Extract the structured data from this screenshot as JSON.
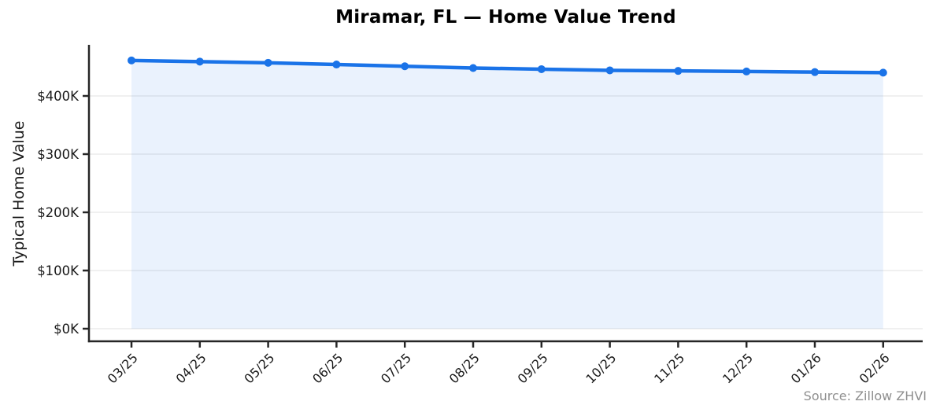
{
  "chart_data": {
    "type": "area",
    "title": "Miramar, FL — Home Value Trend",
    "ylabel": "Typical Home Value",
    "xlabel": "",
    "source": "Source: Zillow ZHVI",
    "legend": "none",
    "grid": "horizontal",
    "x": [
      "03/25",
      "04/25",
      "05/25",
      "06/25",
      "07/25",
      "08/25",
      "09/25",
      "10/25",
      "11/25",
      "12/25",
      "01/26",
      "02/26"
    ],
    "series": [
      {
        "name": "Typical Home Value",
        "values": [
          461000,
          459000,
          457000,
          454000,
          451000,
          448000,
          446000,
          444000,
          443000,
          442000,
          441000,
          440000
        ]
      }
    ],
    "y_ticks": [
      {
        "value": 0,
        "label": "$0K"
      },
      {
        "value": 100000,
        "label": "$100K"
      },
      {
        "value": 200000,
        "label": "$200K"
      },
      {
        "value": 300000,
        "label": "$300K"
      },
      {
        "value": 400000,
        "label": "$400K"
      }
    ],
    "ylim": [
      -20000,
      490000
    ],
    "x_tick_rotation_deg": 45,
    "colors": {
      "line": "#1a73e8",
      "marker": "#1a73e8",
      "fill": "rgba(26, 115, 232, 0.09)",
      "grid": "#e7e7e7",
      "axis": "#262626",
      "tick_text": "#1a1a1a",
      "title_text": "#000000",
      "source_text": "#8f8f8f"
    }
  }
}
